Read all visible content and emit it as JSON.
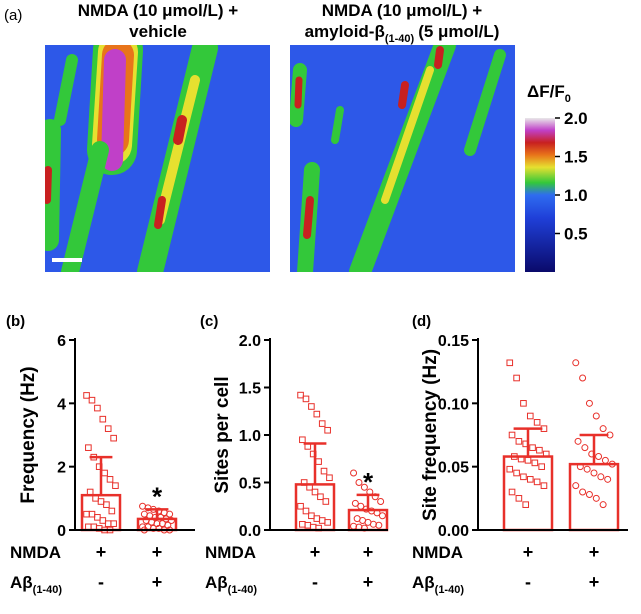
{
  "panel_a": {
    "label": "(a)",
    "titles": [
      {
        "line1": "NMDA (10 μmol/L) +",
        "line2": "vehicle"
      },
      {
        "line1": "NMDA (10 μmol/L) +",
        "line2": "amyloid-β",
        "line2_sub": "(1-40)",
        "line2_after": "(5 μmol/L)"
      }
    ],
    "colorbar": {
      "title": "ΔF/F",
      "title_sub": "0",
      "lim": [
        0,
        2
      ],
      "ticks": [
        {
          "value": 2,
          "label": "2.0"
        },
        {
          "value": 1.5,
          "label": "1.5"
        },
        {
          "value": 1,
          "label": "1.0"
        },
        {
          "value": 0.5,
          "label": "0.5"
        }
      ]
    }
  },
  "chart_data": [
    {
      "type": "bar",
      "panel_label": "(b)",
      "ylabel": "Frequency (Hz)",
      "color": "#e8302a",
      "ylim": [
        0,
        6
      ],
      "yticks": [
        0,
        2,
        4,
        6
      ],
      "values": [
        1.1,
        0.35
      ],
      "errors": [
        1.2,
        0.3
      ],
      "markers": [
        "square",
        "circle"
      ],
      "points": [
        [
          4.25,
          4.1,
          3.85,
          3.5,
          3.2,
          2.9,
          2.6,
          2.3,
          2.0,
          1.8,
          1.6,
          1.4,
          1.2,
          1.0,
          0.9,
          0.8,
          0.6,
          0.5,
          0.5,
          0.4,
          0.3,
          0.2,
          0.2,
          0.1,
          0.1,
          0.05,
          0,
          0
        ],
        [
          0.75,
          0.7,
          0.65,
          0.6,
          0.55,
          0.5,
          0.5,
          0.45,
          0.4,
          0.4,
          0.35,
          0.3,
          0.3,
          0.25,
          0.2,
          0.2,
          0.15,
          0.1,
          0.1,
          0.05,
          0.05,
          0,
          0,
          0
        ]
      ],
      "annotation": {
        "text": "*",
        "category": 1
      },
      "rows": [
        {
          "label": "NMDA",
          "values": [
            "+",
            "+"
          ]
        },
        {
          "label": "Aβ",
          "label_sub": "(1-40)",
          "values": [
            "-",
            "+"
          ]
        }
      ]
    },
    {
      "type": "bar",
      "panel_label": "(c)",
      "ylabel": "Sites per cell",
      "color": "#e8302a",
      "ylim": [
        0,
        2
      ],
      "yticks": [
        {
          "value": 0,
          "label": "0.0"
        },
        {
          "value": 0.5,
          "label": "0.5"
        },
        {
          "value": 1,
          "label": "1.0"
        },
        {
          "value": 1.5,
          "label": "1.5"
        },
        {
          "value": 2,
          "label": "2.0"
        }
      ],
      "values": [
        0.48,
        0.21
      ],
      "errors": [
        0.43,
        0.16
      ],
      "markers": [
        "square",
        "circle"
      ],
      "points": [
        [
          1.42,
          1.38,
          1.3,
          1.22,
          1.12,
          1.05,
          0.95,
          0.88,
          0.8,
          0.72,
          0.62,
          0.55,
          0.5,
          0.45,
          0.4,
          0.35,
          0.3,
          0.25,
          0.2,
          0.15,
          0.12,
          0.1,
          0.08,
          0.06,
          0.05,
          0.03,
          0.02
        ],
        [
          0.6,
          0.5,
          0.45,
          0.4,
          0.35,
          0.3,
          0.28,
          0.25,
          0.22,
          0.2,
          0.18,
          0.15,
          0.12,
          0.1,
          0.08,
          0.06,
          0.05,
          0.04,
          0.03,
          0.02
        ]
      ],
      "annotation": {
        "text": "*",
        "category": 1
      },
      "rows": [
        {
          "label": "NMDA",
          "values": [
            "+",
            "+"
          ]
        },
        {
          "label": "Aβ",
          "label_sub": "(1-40)",
          "values": [
            "-",
            "+"
          ]
        }
      ]
    },
    {
      "type": "bar",
      "panel_label": "(d)",
      "ylabel": "Site frequency (Hz)",
      "color": "#e8302a",
      "ylim": [
        0,
        0.15
      ],
      "yticks": [
        {
          "value": 0,
          "label": "0.00"
        },
        {
          "value": 0.05,
          "label": "0.05"
        },
        {
          "value": 0.1,
          "label": "0.10"
        },
        {
          "value": 0.15,
          "label": "0.15"
        }
      ],
      "values": [
        0.058,
        0.052
      ],
      "errors": [
        0.022,
        0.023
      ],
      "markers": [
        "square",
        "circle"
      ],
      "points": [
        [
          0.132,
          0.12,
          0.1,
          0.09,
          0.085,
          0.08,
          0.075,
          0.07,
          0.068,
          0.065,
          0.063,
          0.06,
          0.058,
          0.056,
          0.055,
          0.053,
          0.05,
          0.048,
          0.045,
          0.042,
          0.04,
          0.038,
          0.035,
          0.03,
          0.025,
          0.02
        ],
        [
          0.132,
          0.12,
          0.1,
          0.09,
          0.08,
          0.075,
          0.07,
          0.065,
          0.06,
          0.058,
          0.055,
          0.052,
          0.05,
          0.048,
          0.045,
          0.042,
          0.04,
          0.035,
          0.03,
          0.028,
          0.025,
          0.02
        ]
      ],
      "rows": [
        {
          "label": "NMDA",
          "values": [
            "+",
            "+"
          ]
        },
        {
          "label": "Aβ",
          "label_sub": "(1-40)",
          "values": [
            "-",
            "+"
          ]
        }
      ]
    }
  ]
}
